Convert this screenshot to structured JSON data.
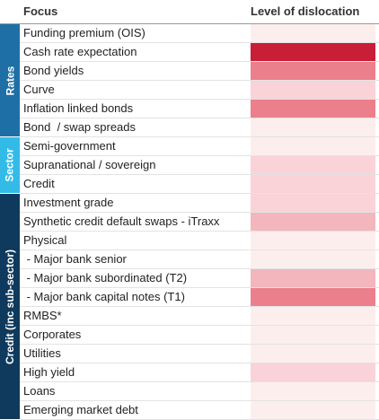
{
  "chart_data": {
    "type": "heatmap",
    "columns": {
      "focus": "Focus",
      "level": "Level of dislocation"
    },
    "colors": [
      "#fdeeee",
      "#f9d3d7",
      "#f3b6bd",
      "#ec7f8c",
      "#c81e38"
    ],
    "groups": [
      {
        "name": "Rates",
        "start": 0,
        "end": 5,
        "color": "#1e6fa6"
      },
      {
        "name": "Sector",
        "start": 6,
        "end": 8,
        "color": "#33bbe8"
      },
      {
        "name": "Credit (inc sub-sector)",
        "start": 9,
        "end": 20,
        "color": "#0f3a5d"
      }
    ],
    "rows": [
      {
        "label": "Funding premium (OIS)",
        "level": 0
      },
      {
        "label": "Cash rate expectation",
        "level": 4
      },
      {
        "label": "Bond yields",
        "level": 3
      },
      {
        "label": "Curve",
        "level": 1
      },
      {
        "label": "Inflation linked bonds",
        "level": 3
      },
      {
        "label": "Bond  / swap spreads",
        "level": 0
      },
      {
        "label": "Semi-government",
        "level": 0
      },
      {
        "label": "Supranational / sovereign",
        "level": 1
      },
      {
        "label": "Credit",
        "level": 1
      },
      {
        "label": "Investment grade",
        "level": 1
      },
      {
        "label": "Synthetic credit default swaps - iTraxx",
        "level": 2
      },
      {
        "label": "Physical",
        "level": 0
      },
      {
        "label": " - Major bank senior",
        "level": 0
      },
      {
        "label": " - Major bank subordinated (T2)",
        "level": 2
      },
      {
        "label": " - Major bank capital notes (T1)",
        "level": 3
      },
      {
        "label": "RMBS*",
        "level": 0
      },
      {
        "label": "Corporates",
        "level": 0
      },
      {
        "label": "Utilities",
        "level": 0
      },
      {
        "label": "High yield",
        "level": 1
      },
      {
        "label": "Loans",
        "level": 0
      },
      {
        "label": "Emerging market debt",
        "level": 0
      }
    ]
  }
}
